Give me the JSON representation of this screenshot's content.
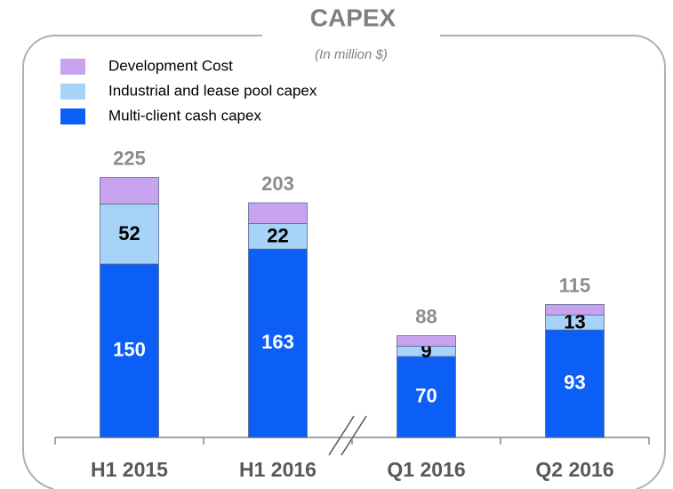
{
  "chart_data": {
    "type": "stacked-bar",
    "title": "CAPEX",
    "subtitle": "(In million $)",
    "categories": [
      "H1 2015",
      "H1 2016",
      "Q1 2016",
      "Q2 2016"
    ],
    "series": [
      {
        "name": "Multi-client cash capex",
        "color": "#0b5ef6",
        "values": [
          150,
          163,
          70,
          93
        ],
        "show_labels": true,
        "label_color": "#ffffff"
      },
      {
        "name": "Industrial and lease pool capex",
        "color": "#a7d3f8",
        "values": [
          52,
          22,
          9,
          13
        ],
        "show_labels": true,
        "label_color": "#000000"
      },
      {
        "name": "Development Cost",
        "color": "#c8a3ef",
        "values": [
          23,
          18,
          9,
          9
        ],
        "show_labels": false,
        "label_color": "#000000"
      }
    ],
    "totals": [
      225,
      203,
      88,
      115
    ]
  }
}
